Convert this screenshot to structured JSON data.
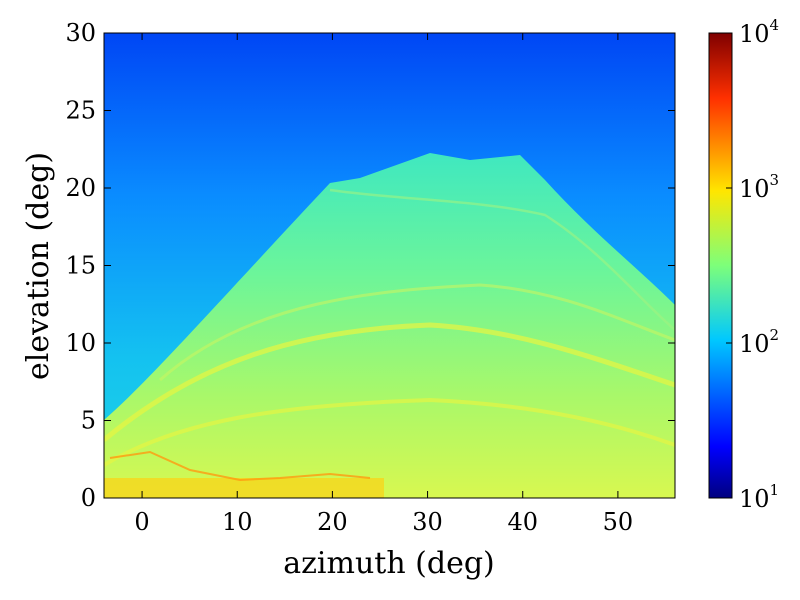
{
  "chart_data": {
    "type": "heatmap",
    "title": "",
    "xlabel": "azimuth (deg)",
    "ylabel": "elevation (deg)",
    "xlim": [
      -4,
      56
    ],
    "ylim": [
      0,
      30
    ],
    "x_ticks": [
      "0",
      "10",
      "20",
      "30",
      "40",
      "50"
    ],
    "y_ticks": [
      "0",
      "5",
      "10",
      "15",
      "20",
      "25",
      "30"
    ],
    "colormap": "jet",
    "color_scale": "log",
    "colorbar": {
      "range": [
        10,
        10000
      ],
      "tick_labels": [
        {
          "base": "10",
          "exp": "1"
        },
        {
          "base": "10",
          "exp": "2"
        },
        {
          "base": "10",
          "exp": "3"
        },
        {
          "base": "10",
          "exp": "4"
        }
      ]
    },
    "regions": [
      {
        "description": "sky background",
        "elevation_range": [
          12,
          30
        ],
        "approx_value": 60
      },
      {
        "description": "trapezoidal ridge silhouette",
        "azimuth_range": [
          -4,
          56
        ],
        "peak_elevation": 22,
        "peak_azimuth_range": [
          28,
          40
        ],
        "approx_value": 250
      },
      {
        "description": "bright band near horizon",
        "elevation_range": [
          0,
          2
        ],
        "approx_value": 1200
      }
    ],
    "grid": false
  }
}
